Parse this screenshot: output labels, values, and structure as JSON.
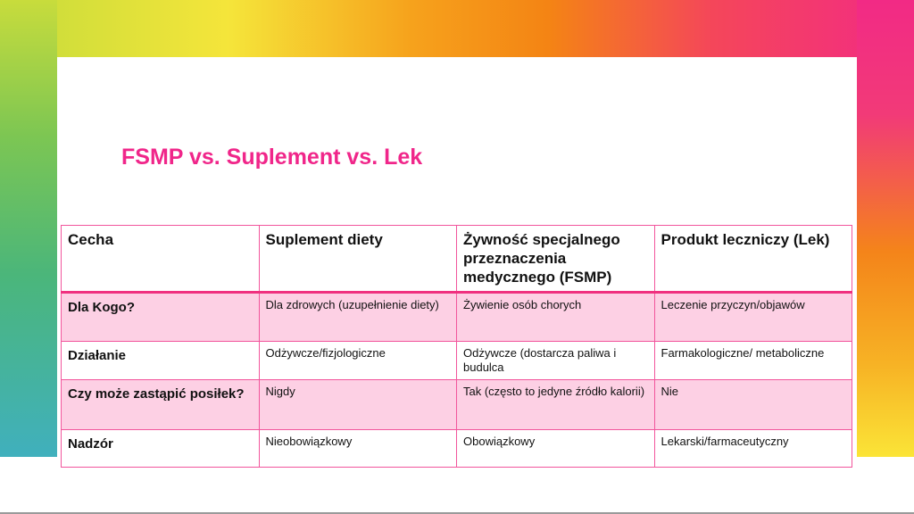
{
  "title": "FSMP vs. Suplement vs. Lek",
  "table": {
    "headers": [
      "Cecha",
      "Suplement diety",
      "Żywność specjalnego przeznaczenia medycznego (FSMP)",
      "Produkt leczniczy (Lek)"
    ],
    "rows": [
      [
        "Dla Kogo?",
        "Dla zdrowych (uzupełnienie diety)",
        "Żywienie osób chorych",
        "Leczenie przyczyn/objawów"
      ],
      [
        "Działanie",
        "Odżywcze/fizjologiczne",
        "Odżywcze (dostarcza paliwa i budulca",
        "Farmakologiczne/ metaboliczne"
      ],
      [
        "Czy może zastąpić posiłek?",
        "Nigdy",
        "Tak (często to jedyne źródło kalorii)",
        "Nie"
      ],
      [
        "Nadzór",
        "Nieobowiązkowy",
        "Obowiązkowy",
        "Lekarski/farmaceutyczny"
      ]
    ]
  },
  "colors": {
    "accent": "#f0268a",
    "row_fill": "#fdd0e4",
    "border": "#f2559c"
  }
}
